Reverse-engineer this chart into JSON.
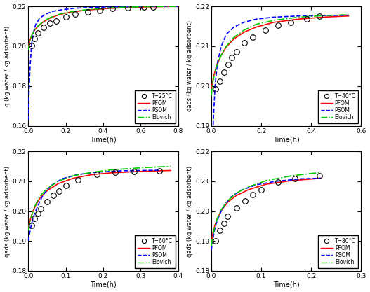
{
  "subplots": [
    {
      "title": "T=25°C",
      "ylabel": "q (kg water / kg adsorbent)",
      "xlabel": "Time(h)",
      "xlim": [
        0,
        0.8
      ],
      "ylim": [
        0.16,
        0.22
      ],
      "yticks": [
        0.16,
        0.18,
        0.2,
        0.22
      ],
      "xticks": [
        0,
        0.2,
        0.4,
        0.6,
        0.8
      ],
      "data_points_x": [
        0.017,
        0.033,
        0.05,
        0.083,
        0.117,
        0.15,
        0.2,
        0.25,
        0.317,
        0.383,
        0.45,
        0.533,
        0.617,
        0.667
      ],
      "data_points_y": [
        0.2002,
        0.2038,
        0.2065,
        0.2095,
        0.2115,
        0.2128,
        0.2148,
        0.2162,
        0.2172,
        0.218,
        0.2188,
        0.2192,
        0.2195,
        0.2197
      ],
      "pfom_x": [
        0.0,
        0.005,
        0.01,
        0.02,
        0.035,
        0.05,
        0.08,
        0.12,
        0.17,
        0.22,
        0.3,
        0.4,
        0.5,
        0.65,
        0.8
      ],
      "pfom_y": [
        0.199,
        0.2015,
        0.2033,
        0.2058,
        0.2082,
        0.2098,
        0.2122,
        0.2143,
        0.216,
        0.217,
        0.218,
        0.2188,
        0.2193,
        0.2198,
        0.22
      ],
      "psom_x": [
        0.0,
        0.005,
        0.01,
        0.018,
        0.028,
        0.04,
        0.06,
        0.09,
        0.13,
        0.18,
        0.25,
        0.35,
        0.5,
        0.65,
        0.8
      ],
      "psom_y": [
        0.163,
        0.179,
        0.19,
        0.201,
        0.207,
        0.211,
        0.214,
        0.216,
        0.2175,
        0.2183,
        0.2191,
        0.2195,
        0.2198,
        0.22,
        0.22
      ],
      "elovich_x": [
        0.0,
        0.005,
        0.01,
        0.02,
        0.035,
        0.05,
        0.08,
        0.12,
        0.17,
        0.22,
        0.3,
        0.4,
        0.5,
        0.65,
        0.8
      ],
      "elovich_y": [
        0.198,
        0.201,
        0.203,
        0.2058,
        0.2083,
        0.21,
        0.2124,
        0.2145,
        0.2162,
        0.2172,
        0.2182,
        0.219,
        0.2195,
        0.2199,
        0.22
      ]
    },
    {
      "title": "T=40°C",
      "ylabel": "qads (kg water / kg adsorbent)",
      "xlabel": "Time(h)",
      "xlim": [
        0,
        0.6
      ],
      "ylim": [
        0.19,
        0.22
      ],
      "yticks": [
        0.19,
        0.2,
        0.21,
        0.22
      ],
      "xticks": [
        0,
        0.2,
        0.4,
        0.6
      ],
      "data_points_x": [
        0.017,
        0.033,
        0.05,
        0.067,
        0.083,
        0.1,
        0.133,
        0.167,
        0.217,
        0.267,
        0.317,
        0.383,
        0.433
      ],
      "data_points_y": [
        0.1992,
        0.2012,
        0.2035,
        0.2055,
        0.2072,
        0.2085,
        0.2108,
        0.2122,
        0.214,
        0.2152,
        0.216,
        0.2168,
        0.2175
      ],
      "pfom_x": [
        0.0,
        0.005,
        0.01,
        0.02,
        0.04,
        0.06,
        0.09,
        0.13,
        0.18,
        0.25,
        0.35,
        0.45,
        0.55
      ],
      "pfom_y": [
        0.1988,
        0.201,
        0.2025,
        0.205,
        0.2078,
        0.2098,
        0.2118,
        0.2135,
        0.2148,
        0.216,
        0.2168,
        0.2173,
        0.2176
      ],
      "psom_x": [
        0.0,
        0.004,
        0.008,
        0.015,
        0.025,
        0.04,
        0.06,
        0.09,
        0.13,
        0.18,
        0.25,
        0.35,
        0.45,
        0.55
      ],
      "psom_y": [
        0.17,
        0.182,
        0.191,
        0.2,
        0.206,
        0.21,
        0.213,
        0.2148,
        0.216,
        0.2168,
        0.2173,
        0.2176,
        0.2177,
        0.2178
      ],
      "elovich_x": [
        0.0,
        0.005,
        0.01,
        0.02,
        0.04,
        0.06,
        0.09,
        0.13,
        0.18,
        0.25,
        0.35,
        0.45,
        0.55
      ],
      "elovich_y": [
        0.1975,
        0.2005,
        0.2022,
        0.2048,
        0.2078,
        0.21,
        0.2122,
        0.214,
        0.2155,
        0.2165,
        0.2173,
        0.2177,
        0.2179
      ]
    },
    {
      "title": "T=60°C",
      "ylabel": "qads (kg water / kg adsorbent)",
      "xlabel": "Time(h)",
      "xlim": [
        0,
        0.4
      ],
      "ylim": [
        0.18,
        0.22
      ],
      "yticks": [
        0.18,
        0.19,
        0.2,
        0.21,
        0.22
      ],
      "xticks": [
        0,
        0.1,
        0.2,
        0.3,
        0.4
      ],
      "data_points_x": [
        0.008,
        0.017,
        0.025,
        0.033,
        0.05,
        0.067,
        0.083,
        0.1,
        0.133,
        0.183,
        0.233,
        0.283,
        0.35
      ],
      "data_points_y": [
        0.1952,
        0.1975,
        0.1993,
        0.2008,
        0.2032,
        0.2052,
        0.2068,
        0.2085,
        0.2105,
        0.2122,
        0.213,
        0.2132,
        0.2135
      ],
      "pfom_x": [
        0.0,
        0.003,
        0.007,
        0.012,
        0.02,
        0.03,
        0.05,
        0.08,
        0.12,
        0.17,
        0.22,
        0.3,
        0.38
      ],
      "pfom_y": [
        0.1942,
        0.196,
        0.1978,
        0.1998,
        0.202,
        0.2042,
        0.2068,
        0.2092,
        0.211,
        0.2122,
        0.2128,
        0.2133,
        0.2136
      ],
      "psom_x": [
        0.0,
        0.003,
        0.006,
        0.01,
        0.017,
        0.027,
        0.04,
        0.06,
        0.09,
        0.13,
        0.18,
        0.25,
        0.35
      ],
      "psom_y": [
        0.19,
        0.192,
        0.1942,
        0.1963,
        0.1992,
        0.2022,
        0.2055,
        0.2085,
        0.2108,
        0.2122,
        0.213,
        0.2135,
        0.2137
      ],
      "elovich_x": [
        0.0,
        0.003,
        0.007,
        0.012,
        0.02,
        0.03,
        0.05,
        0.08,
        0.12,
        0.17,
        0.22,
        0.3,
        0.38
      ],
      "elovich_y": [
        0.1935,
        0.1955,
        0.1975,
        0.1998,
        0.2023,
        0.2048,
        0.2075,
        0.21,
        0.2118,
        0.213,
        0.2138,
        0.2145,
        0.215
      ]
    },
    {
      "title": "T=80°C",
      "ylabel": "qads (kg water / kg adsorbent)",
      "xlabel": "Time(h)",
      "xlim": [
        0,
        0.3
      ],
      "ylim": [
        0.18,
        0.22
      ],
      "yticks": [
        0.18,
        0.19,
        0.2,
        0.21,
        0.22
      ],
      "xticks": [
        0,
        0.1,
        0.2,
        0.3
      ],
      "data_points_x": [
        0.008,
        0.017,
        0.025,
        0.033,
        0.05,
        0.067,
        0.083,
        0.1,
        0.133,
        0.167,
        0.217
      ],
      "data_points_y": [
        0.19,
        0.1935,
        0.196,
        0.1982,
        0.201,
        0.2035,
        0.2055,
        0.2072,
        0.2098,
        0.2108,
        0.2118
      ],
      "pfom_x": [
        0.0,
        0.003,
        0.007,
        0.012,
        0.02,
        0.033,
        0.05,
        0.075,
        0.11,
        0.16,
        0.22
      ],
      "pfom_y": [
        0.189,
        0.1925,
        0.1952,
        0.1975,
        0.2002,
        0.203,
        0.2052,
        0.2072,
        0.209,
        0.2102,
        0.211
      ],
      "psom_x": [
        0.0,
        0.003,
        0.006,
        0.01,
        0.017,
        0.027,
        0.04,
        0.06,
        0.09,
        0.13,
        0.18,
        0.22
      ],
      "psom_y": [
        0.187,
        0.1905,
        0.1933,
        0.1958,
        0.199,
        0.2022,
        0.2048,
        0.207,
        0.2088,
        0.21,
        0.2108,
        0.211
      ],
      "elovich_x": [
        0.0,
        0.003,
        0.007,
        0.012,
        0.02,
        0.033,
        0.05,
        0.075,
        0.11,
        0.16,
        0.22
      ],
      "elovich_y": [
        0.1882,
        0.1918,
        0.1948,
        0.1975,
        0.2005,
        0.2035,
        0.206,
        0.2082,
        0.2102,
        0.2118,
        0.213
      ]
    }
  ],
  "pfom_color": "#FF0000",
  "psom_color": "#0000FF",
  "elovich_color": "#00CC00",
  "data_color": "#000000",
  "line_width": 1.2,
  "marker_size": 5.5
}
